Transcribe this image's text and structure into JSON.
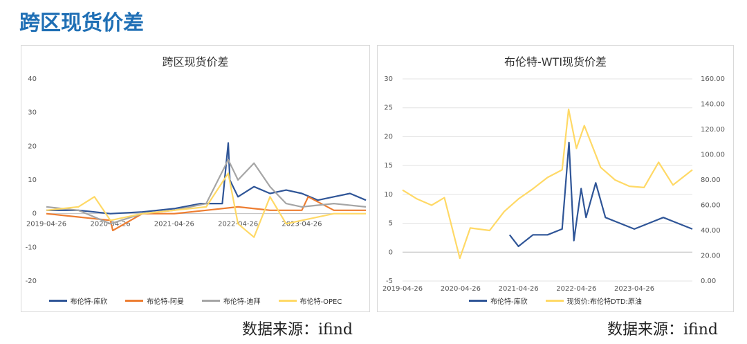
{
  "page": {
    "title": "跨区现货价差",
    "source_left": "数据来源：ifind",
    "source_right": "数据来源：ifind"
  },
  "chart_data": [
    {
      "type": "line",
      "title": "跨区现货价差",
      "ylim": [
        -20,
        40
      ],
      "y_ticks": [
        "40",
        "30",
        "20",
        "10",
        "0",
        "-10",
        "-20"
      ],
      "x_ticks": [
        "2019-04-26",
        "2020-04-26",
        "2021-04-26",
        "2022-04-26",
        "2023-04-26"
      ],
      "xlim": [
        "2019-04-26",
        "2024-04-26"
      ],
      "grid": false,
      "legend_position": "bottom",
      "series": [
        {
          "name": "布伦特-库欣",
          "color": "#2f5597",
          "x": [
            "2019-04-26",
            "2019-10-26",
            "2020-04-26",
            "2020-10-26",
            "2021-04-26",
            "2021-09-26",
            "2022-01-26",
            "2022-03-01",
            "2022-03-10",
            "2022-04-26",
            "2022-07-26",
            "2022-10-26",
            "2023-01-26",
            "2023-04-26",
            "2023-07-26",
            "2023-10-26",
            "2024-01-26",
            "2024-04-26"
          ],
          "values": [
            1,
            1,
            0,
            0.5,
            1.5,
            3,
            3,
            21,
            10,
            5,
            8,
            6,
            7,
            6,
            4,
            5,
            6,
            4
          ]
        },
        {
          "name": "布伦特-阿曼",
          "color": "#ed7d31",
          "x": [
            "2019-04-26",
            "2019-10-26",
            "2020-04-26",
            "2020-05-10",
            "2020-10-26",
            "2021-04-26",
            "2021-10-26",
            "2022-04-26",
            "2022-10-26",
            "2023-04-26",
            "2023-06-01",
            "2023-10-26",
            "2024-04-26"
          ],
          "values": [
            0,
            -1,
            -2,
            -5,
            0,
            0,
            1,
            2,
            1,
            1,
            5,
            1,
            1
          ]
        },
        {
          "name": "布伦特-迪拜",
          "color": "#a5a5a5",
          "x": [
            "2019-04-26",
            "2019-10-26",
            "2020-04-26",
            "2020-10-26",
            "2021-04-26",
            "2021-10-26",
            "2022-03-01",
            "2022-04-26",
            "2022-07-26",
            "2022-10-26",
            "2023-01-26",
            "2023-04-26",
            "2023-10-26",
            "2024-04-26"
          ],
          "values": [
            2,
            1,
            -3,
            0,
            1,
            3,
            16,
            10,
            15,
            8,
            3,
            2,
            3,
            2
          ]
        },
        {
          "name": "布伦特-OPEC",
          "color": "#ffd966",
          "x": [
            "2019-04-26",
            "2019-10-26",
            "2020-01-26",
            "2020-04-26",
            "2020-10-26",
            "2021-04-26",
            "2021-10-26",
            "2022-03-01",
            "2022-04-26",
            "2022-07-26",
            "2022-10-26",
            "2023-01-26",
            "2023-04-26",
            "2023-10-26",
            "2024-04-26"
          ],
          "values": [
            1,
            2,
            5,
            -2,
            0,
            1,
            2,
            12,
            -3,
            -7,
            5,
            -3,
            -2,
            0,
            0
          ]
        }
      ]
    },
    {
      "type": "line",
      "title": "布伦特-WTI现货价差",
      "ylim": [
        -5,
        30
      ],
      "y2lim": [
        0,
        160
      ],
      "y_ticks": [
        "30",
        "25",
        "20",
        "15",
        "10",
        "5",
        "0",
        "-5"
      ],
      "y2_ticks": [
        "160.00",
        "140.00",
        "120.00",
        "100.00",
        "80.00",
        "60.00",
        "40.00",
        "20.00",
        "0.00"
      ],
      "x_ticks": [
        "2019-04-26",
        "2020-04-26",
        "2021-04-26",
        "2022-04-26",
        "2023-04-26"
      ],
      "xlim": [
        "2019-04-26",
        "2024-04-26"
      ],
      "grid": true,
      "legend_position": "bottom",
      "series": [
        {
          "name": "布伦特-库欣",
          "color": "#2f5597",
          "axis": "left",
          "x": [
            "2021-03-01",
            "2021-04-26",
            "2021-07-26",
            "2021-10-26",
            "2022-01-26",
            "2022-03-10",
            "2022-04-10",
            "2022-05-26",
            "2022-06-26",
            "2022-08-26",
            "2022-10-26",
            "2023-01-26",
            "2023-04-26",
            "2023-07-26",
            "2023-10-26",
            "2024-01-26",
            "2024-04-26"
          ],
          "values": [
            3,
            1,
            3,
            3,
            4,
            19,
            2,
            11,
            6,
            12,
            6,
            5,
            4,
            5,
            6,
            5,
            4
          ]
        },
        {
          "name": "现货价:布伦特DTD:原油",
          "color": "#ffd966",
          "axis": "right",
          "x": [
            "2019-04-26",
            "2019-07-26",
            "2019-10-26",
            "2020-01-15",
            "2020-04-21",
            "2020-06-26",
            "2020-10-26",
            "2021-01-26",
            "2021-04-26",
            "2021-07-26",
            "2021-10-26",
            "2022-01-26",
            "2022-03-08",
            "2022-04-26",
            "2022-06-15",
            "2022-09-26",
            "2022-12-26",
            "2023-03-26",
            "2023-06-26",
            "2023-09-26",
            "2023-12-26",
            "2024-04-26"
          ],
          "values": [
            72,
            65,
            60,
            66,
            18,
            42,
            40,
            55,
            65,
            73,
            82,
            88,
            136,
            105,
            123,
            90,
            80,
            75,
            74,
            94,
            76,
            88
          ]
        }
      ]
    }
  ]
}
